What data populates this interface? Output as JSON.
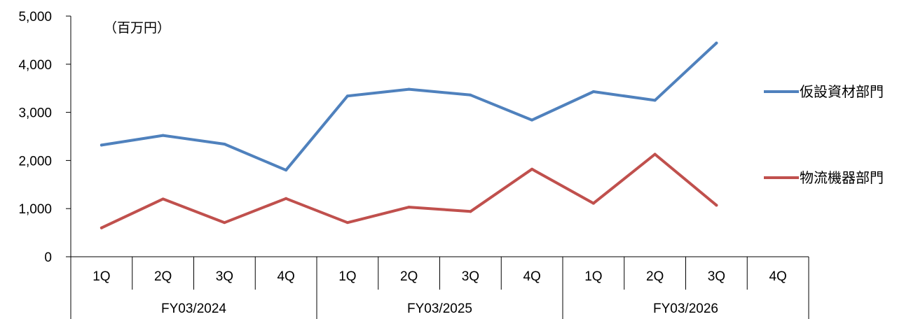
{
  "chart_data": {
    "type": "line",
    "unit_label": "（百万円）",
    "ylim": [
      0,
      5000
    ],
    "y_ticks": [
      "0",
      "1,000",
      "2,000",
      "3,000",
      "4,000",
      "5,000"
    ],
    "y_tick_values": [
      0,
      1000,
      2000,
      3000,
      4000,
      5000
    ],
    "categories": [
      "1Q",
      "2Q",
      "3Q",
      "4Q",
      "1Q",
      "2Q",
      "3Q",
      "4Q",
      "1Q",
      "2Q",
      "3Q",
      "4Q"
    ],
    "groups": [
      {
        "label": "FY03/2024",
        "count": 4
      },
      {
        "label": "FY03/2025",
        "count": 4
      },
      {
        "label": "FY03/2026",
        "count": 4
      }
    ],
    "series": [
      {
        "name": "仮設資材部門",
        "color": "#4F81BD",
        "values": [
          2320,
          2520,
          2340,
          1800,
          3340,
          3480,
          3360,
          2840,
          3430,
          3250,
          4440,
          null
        ]
      },
      {
        "name": "物流機器部門",
        "color": "#C0504D",
        "values": [
          600,
          1200,
          710,
          1210,
          710,
          1030,
          940,
          1820,
          1110,
          2130,
          1070,
          null
        ]
      }
    ],
    "legend_position": "right",
    "grid": false
  }
}
